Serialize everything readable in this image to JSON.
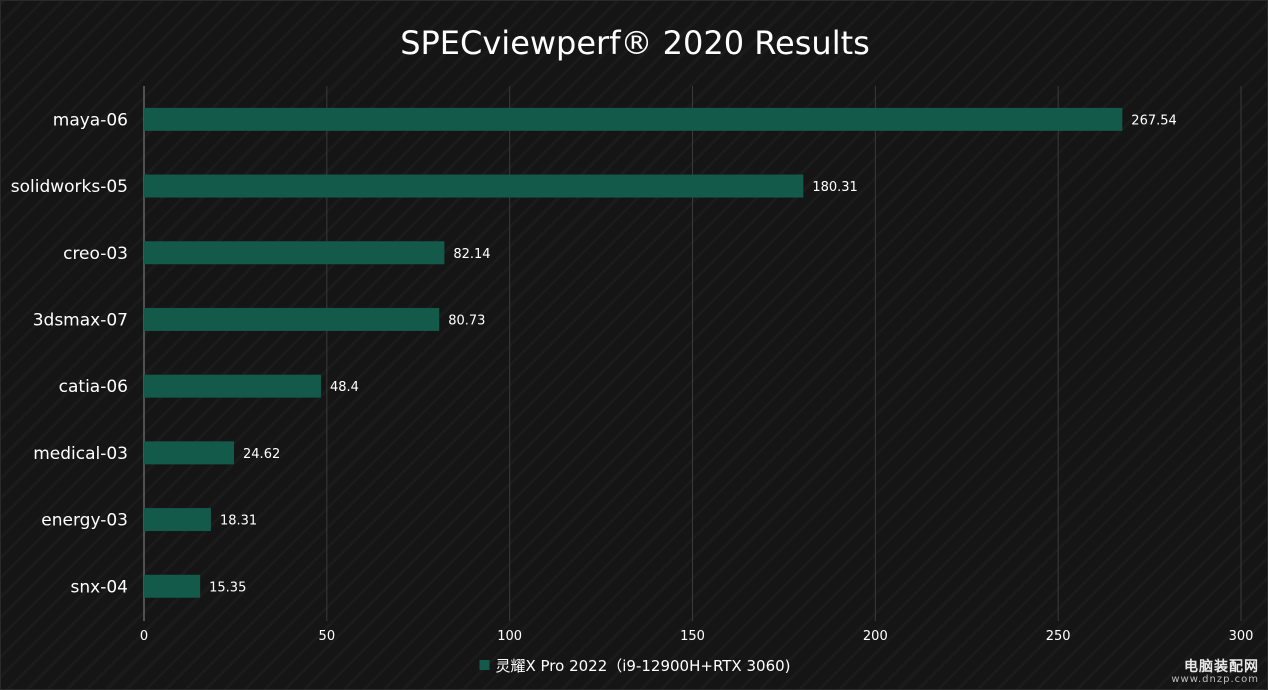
{
  "chart_data": {
    "type": "bar",
    "orientation": "horizontal",
    "title": "SPECviewperf® 2020 Results",
    "categories": [
      "maya-06",
      "solidworks-05",
      "creo-03",
      "3dsmax-07",
      "catia-06",
      "medical-03",
      "energy-03",
      "snx-04"
    ],
    "series": [
      {
        "name": "灵耀X Pro 2022（i9-12900H+RTX 3060)",
        "values": [
          267.54,
          180.31,
          82.14,
          80.73,
          48.4,
          24.62,
          18.31,
          15.35
        ],
        "color": "#135a4b"
      }
    ],
    "xlim": [
      0,
      300
    ],
    "xticks": [
      "0",
      "50",
      "100",
      "150",
      "200",
      "250",
      "300"
    ],
    "grid": true,
    "legend_position": "bottom-center",
    "data_labels": true,
    "colors": {
      "background": "#151515",
      "text": "#ffffff",
      "grid": "#3a3a3a"
    }
  },
  "watermark": {
    "text": "电脑装配网",
    "url": "www.dnzp.com"
  }
}
